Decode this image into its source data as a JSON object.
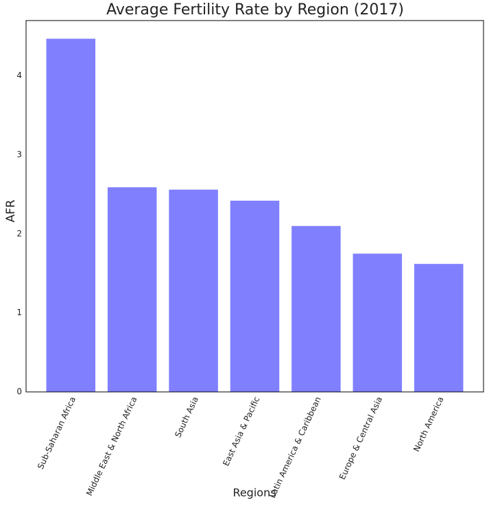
{
  "chart_data": {
    "type": "bar",
    "title": "Average Fertility Rate by Region (2017)",
    "x_label": "Regions",
    "y_label": "AFR",
    "categories": [
      "Sub-Saharan Africa",
      "Middle East & North Africa",
      "South Asia",
      "East Asia & Pacific",
      "Latin America & Caribbean",
      "Europe & Central Asia",
      "North America"
    ],
    "values": [
      4.47,
      2.59,
      2.56,
      2.42,
      2.1,
      1.75,
      1.62
    ],
    "color": "#8080ff",
    "ylim": [
      0,
      4.7
    ],
    "yticks": [
      0,
      1,
      2,
      3,
      4
    ],
    "grid": false
  }
}
